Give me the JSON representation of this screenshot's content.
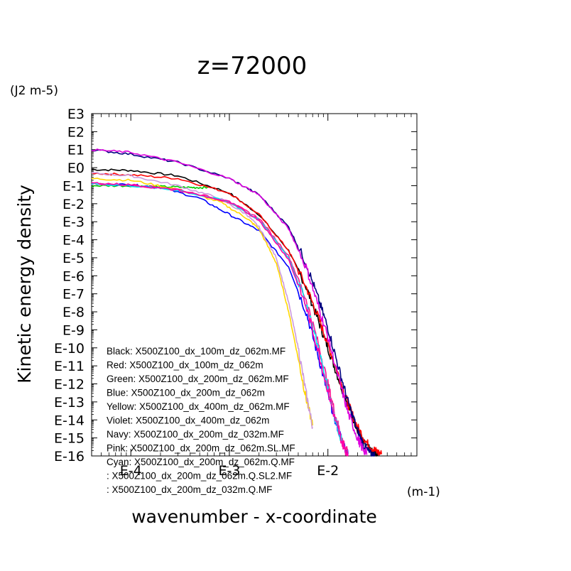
{
  "chart_data": {
    "type": "line",
    "title": "z=72000",
    "ylabel": "Kinetic energy density",
    "yunit": "(J2 m-5)",
    "xlabel": "wavenumber - x-coordinate",
    "xunit": "(m-1)",
    "xscale": "log",
    "yscale": "log",
    "xlim": [
      4e-05,
      0.08
    ],
    "ylim": [
      1e-16,
      1000
    ],
    "yticks": [
      "E3",
      "E2",
      "E1",
      "E0",
      "E-1",
      "E-2",
      "E-3",
      "E-4",
      "E-5",
      "E-6",
      "E-7",
      "E-8",
      "E-9",
      "E-10",
      "E-11",
      "E-12",
      "E-13",
      "E-14",
      "E-15",
      "E-16"
    ],
    "xticks": [
      "E-4",
      "E-3",
      "E-2"
    ],
    "legend_position": "bottom-left",
    "legend": [
      "Black: X500Z100_dx_100m_dz_062m.MF",
      "Red: X500Z100_dx_100m_dz_062m",
      "Green: X500Z100_dx_200m_dz_062m.MF",
      "Blue: X500Z100_dx_200m_dz_062m",
      "Yellow: X500Z100_dx_400m_dz_062m.MF",
      "Violet: X500Z100_dx_400m_dz_062m",
      "Navy: X500Z100_dx_200m_dz_032m.MF",
      "Pink: X500Z100_dx_200m_dz_062m.SL.MF",
      "Cyan: X500Z100_dx_200m_dz_062m.Q.MF",
      ": X500Z100_dx_200m_dz_062m.Q.SL2.MF",
      ": X500Z100_dx_200m_dz_032m.Q.MF"
    ],
    "series": [
      {
        "color": "#000000",
        "x": [
          4e-05,
          0.0001,
          0.0003,
          0.001,
          0.002,
          0.004,
          0.006,
          0.008,
          0.01,
          0.013,
          0.016,
          0.02,
          0.023,
          0.028,
          0.032
        ],
        "y": [
          -0.1,
          -0.15,
          -0.45,
          -1.4,
          -2.6,
          -4.6,
          -6.6,
          -8.5,
          -10.0,
          -11.8,
          -13.2,
          -14.5,
          -15.3,
          -15.8,
          -16.0
        ]
      },
      {
        "color": "#ff0000",
        "x": [
          4e-05,
          0.0001,
          0.0003,
          0.001,
          0.002,
          0.004,
          0.006,
          0.008,
          0.01,
          0.013,
          0.016,
          0.02,
          0.025,
          0.03,
          0.035
        ],
        "y": [
          -0.3,
          -0.4,
          -0.6,
          -1.4,
          -2.6,
          -4.6,
          -6.6,
          -8.3,
          -9.8,
          -11.6,
          -13.1,
          -14.4,
          -15.3,
          -15.7,
          -15.9
        ]
      },
      {
        "color": "#00cc00",
        "x": [
          4e-05,
          0.0001,
          0.0002,
          0.0004,
          0.0006
        ],
        "y": [
          -1.0,
          -1.0,
          -1.05,
          -1.1,
          -1.1
        ]
      },
      {
        "color": "#0000ff",
        "x": [
          4e-05,
          0.0001,
          0.0002,
          0.0005,
          0.001,
          0.002,
          0.004,
          0.006,
          0.008,
          0.01,
          0.012,
          0.014,
          0.016
        ],
        "y": [
          -0.9,
          -0.95,
          -1.1,
          -1.7,
          -2.6,
          -3.5,
          -5.5,
          -8.0,
          -10.5,
          -12.6,
          -14.1,
          -15.2,
          -15.9
        ]
      },
      {
        "color": "#ffd700",
        "x": [
          4e-05,
          0.0001,
          0.0003,
          0.0008,
          0.0015,
          0.002,
          0.003,
          0.004,
          0.005,
          0.006,
          0.007
        ],
        "y": [
          -0.6,
          -0.7,
          -1.2,
          -1.9,
          -2.8,
          -3.4,
          -5.3,
          -8.0,
          -10.6,
          -12.8,
          -14.3
        ]
      },
      {
        "color": "#cc99dd",
        "x": [
          4e-05,
          0.0001,
          0.0003,
          0.0008,
          0.0015,
          0.002,
          0.003,
          0.004,
          0.005,
          0.006,
          0.007
        ],
        "y": [
          -0.3,
          -0.45,
          -1.0,
          -1.7,
          -2.6,
          -3.3,
          -5.0,
          -7.5,
          -10.0,
          -12.5,
          -14.4
        ]
      },
      {
        "color": "#000080",
        "x": [
          4e-05,
          0.0001,
          0.0003,
          0.001,
          0.002,
          0.004,
          0.006,
          0.008,
          0.01,
          0.013,
          0.016,
          0.02,
          0.023,
          0.027,
          0.03
        ],
        "y": [
          1.0,
          0.75,
          0.3,
          -0.6,
          -1.5,
          -3.3,
          -5.3,
          -7.3,
          -8.9,
          -11.2,
          -13.0,
          -14.6,
          -15.4,
          -15.9,
          -16.0
        ]
      },
      {
        "color": "#ff1493",
        "x": [
          4e-05,
          0.0001,
          0.0003,
          0.001,
          0.002,
          0.004,
          0.006,
          0.008,
          0.01,
          0.012,
          0.014,
          0.016
        ],
        "y": [
          -0.9,
          -0.95,
          -1.2,
          -1.9,
          -2.8,
          -4.9,
          -7.3,
          -9.8,
          -12.0,
          -13.8,
          -15.1,
          -15.9
        ]
      },
      {
        "color": "#00e5ee",
        "x": [
          4e-05,
          0.0001,
          0.0003,
          0.001,
          0.002,
          0.004,
          0.006,
          0.008,
          0.01,
          0.012,
          0.014
        ],
        "y": [
          -0.9,
          -1.0,
          -1.25,
          -1.9,
          -2.9,
          -5.0,
          -7.5,
          -10.0,
          -12.3,
          -14.0,
          -15.3
        ]
      },
      {
        "color": "#dd00dd",
        "x": [
          4e-05,
          0.0001,
          0.0003,
          0.001,
          0.002,
          0.004,
          0.006,
          0.008,
          0.01,
          0.013,
          0.016,
          0.02,
          0.022,
          0.025
        ],
        "y": [
          1.0,
          0.85,
          0.3,
          -0.6,
          -1.5,
          -3.4,
          -5.5,
          -7.7,
          -9.4,
          -11.8,
          -13.6,
          -15.0,
          -15.5,
          -15.9
        ]
      },
      {
        "color": "#ff00aa",
        "x": [
          4e-05,
          0.0001,
          0.0003,
          0.001,
          0.002,
          0.004,
          0.006,
          0.008,
          0.01,
          0.012,
          0.014,
          0.016
        ],
        "y": [
          -0.85,
          -0.95,
          -1.25,
          -1.9,
          -2.9,
          -5.1,
          -7.7,
          -10.2,
          -12.4,
          -14.1,
          -15.3,
          -16.0
        ]
      }
    ]
  }
}
